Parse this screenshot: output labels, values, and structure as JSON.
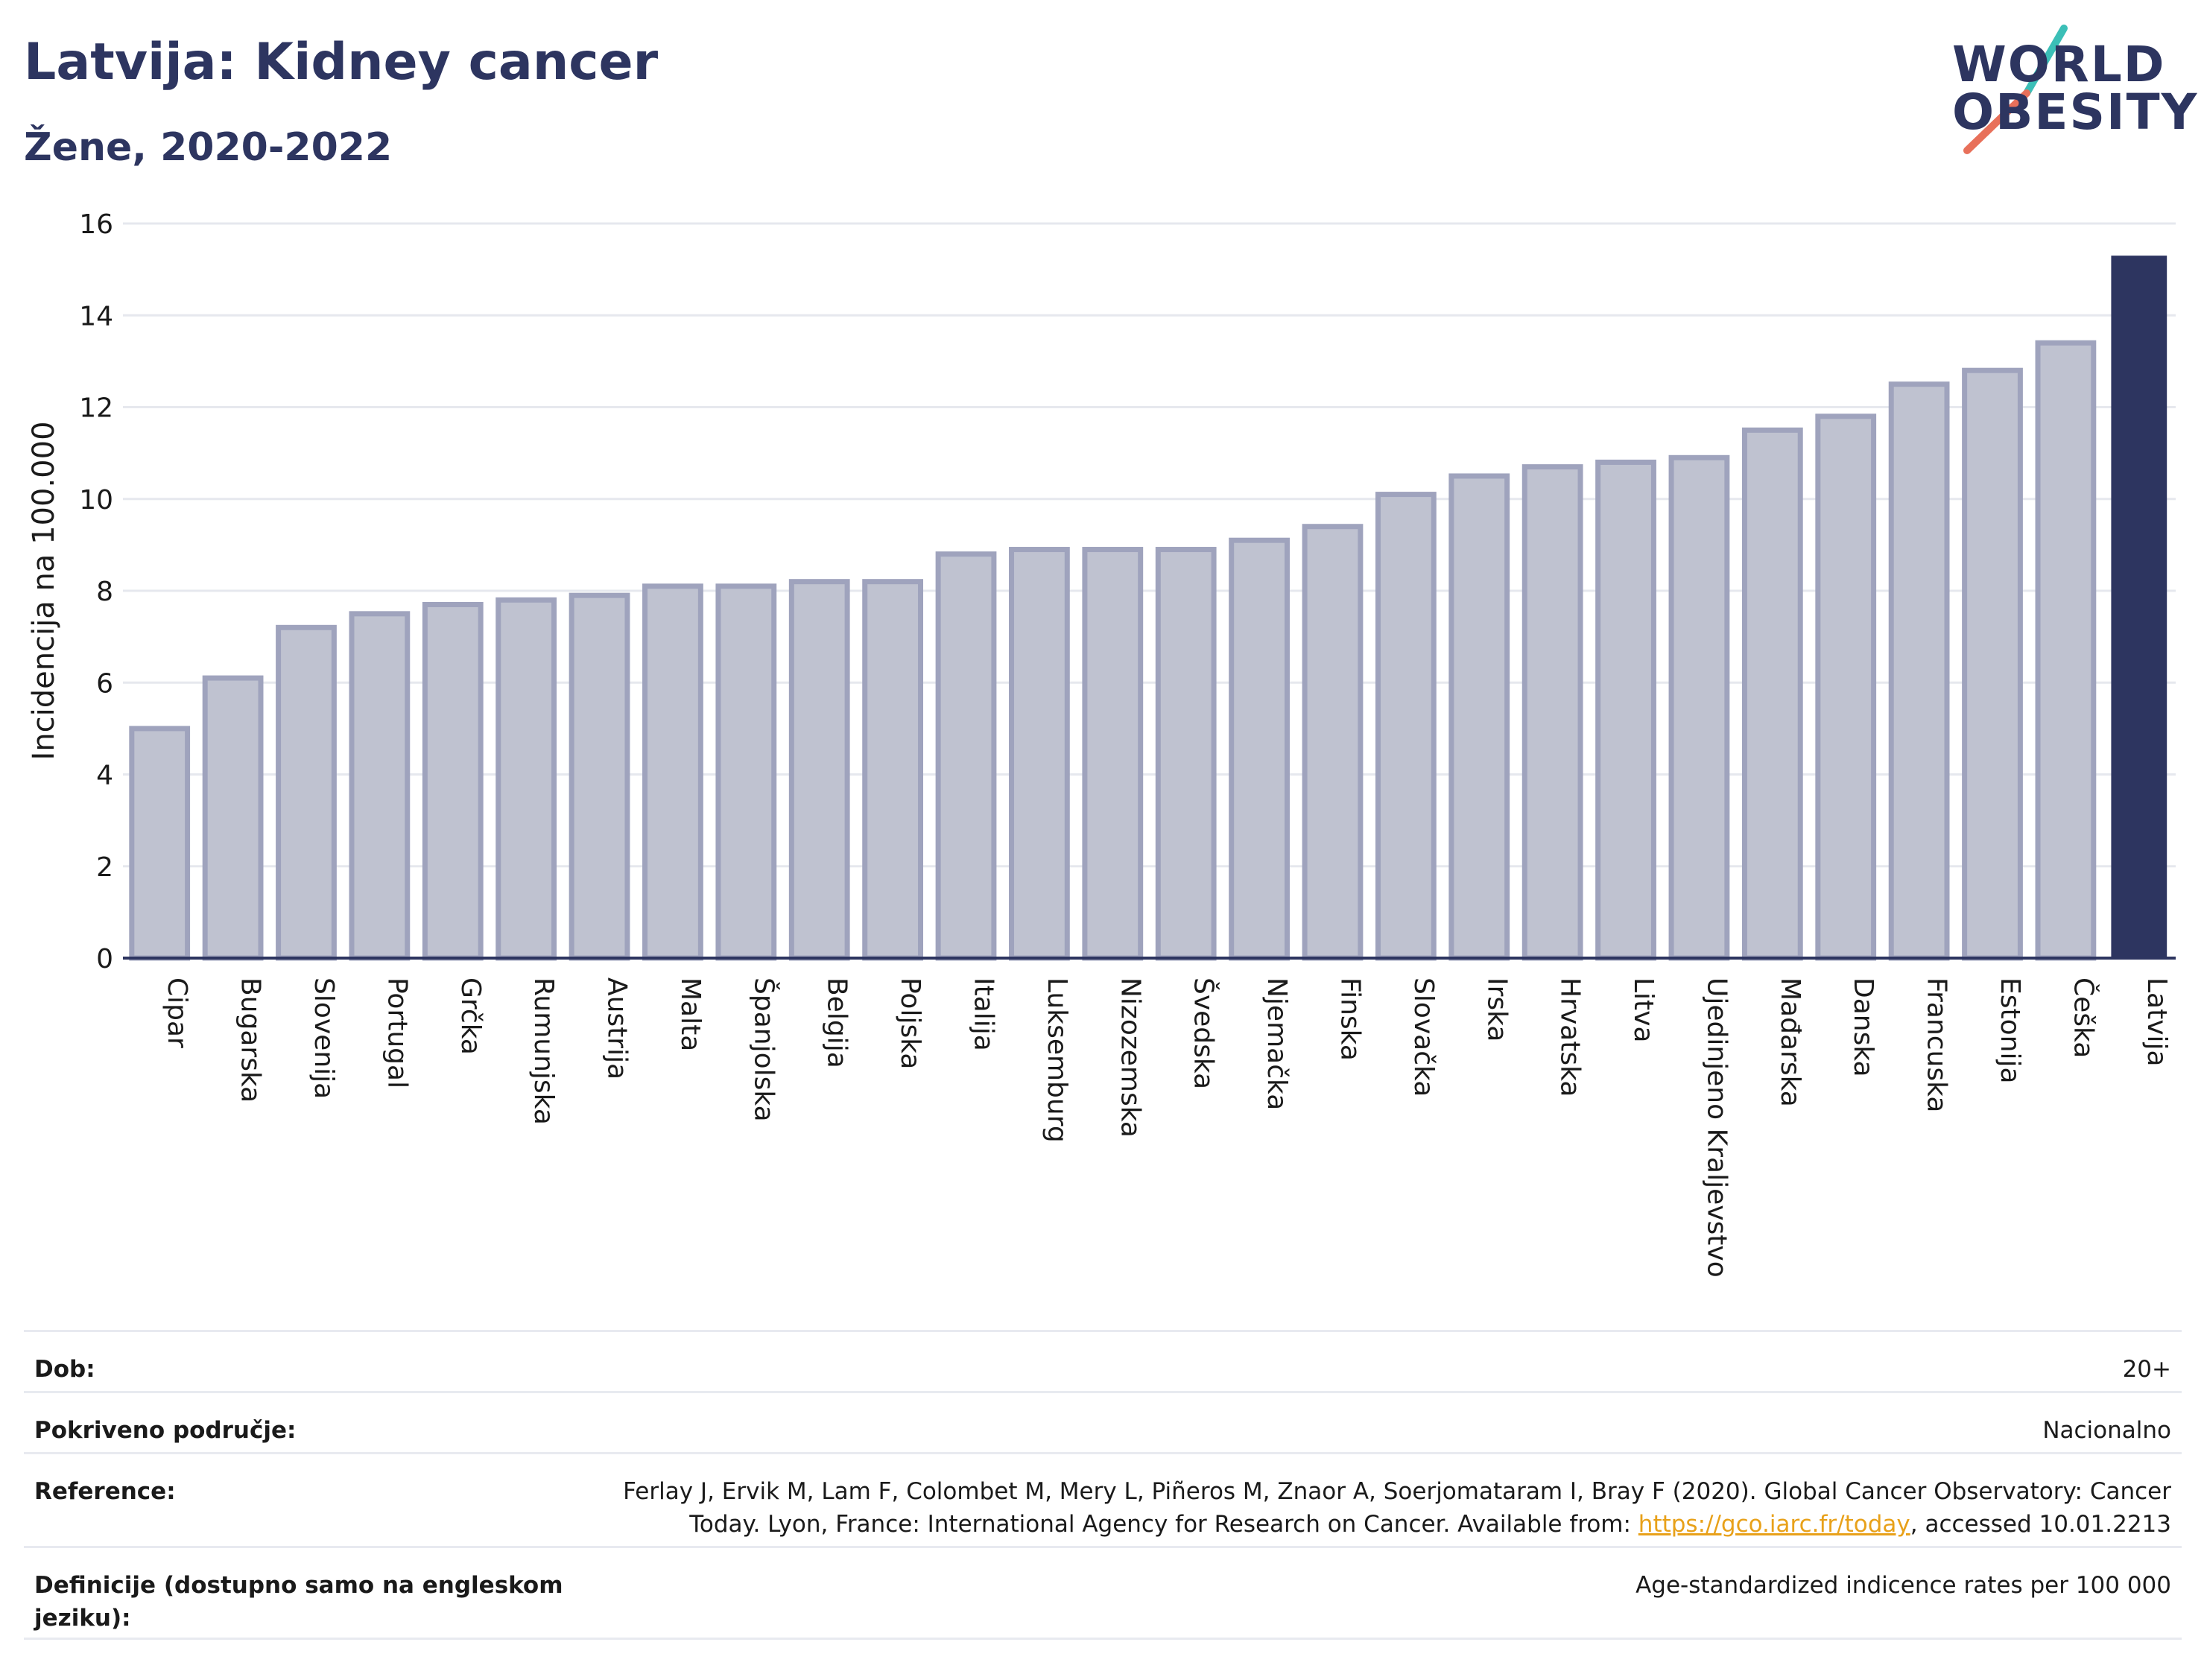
{
  "header": {
    "title": "Latvija: Kidney cancer",
    "subtitle": "Žene, 2020-2022"
  },
  "logo": {
    "line1": "WORLD",
    "line2": "OBESITY",
    "text_color": "#2d3560",
    "slash_colors": [
      "#3bbfb7",
      "#e8705a"
    ]
  },
  "chart_data": {
    "type": "bar",
    "ylabel": "Incidencija na 100.000",
    "ylim": [
      0,
      16
    ],
    "yticks": [
      0,
      2,
      4,
      6,
      8,
      10,
      12,
      14,
      16
    ],
    "grid": true,
    "highlight": "Latvija",
    "colors": {
      "bar": "#bfc2d0",
      "bar_edge": "#9fa3bd",
      "highlight": "#2d3560"
    },
    "categories": [
      "Cipar",
      "Bugarska",
      "Slovenija",
      "Portugal",
      "Grčka",
      "Rumunjska",
      "Austrija",
      "Malta",
      "Španjolska",
      "Belgija",
      "Poljska",
      "Italija",
      "Luksemburg",
      "Nizozemska",
      "Švedska",
      "Njemačka",
      "Finska",
      "Slovačka",
      "Irska",
      "Hrvatska",
      "Litva",
      "Ujedinjeno Kraljevstvo",
      "Mađarska",
      "Danska",
      "Francuska",
      "Estonija",
      "Češka",
      "Latvija"
    ],
    "values": [
      5.0,
      6.1,
      7.2,
      7.5,
      7.7,
      7.8,
      7.9,
      8.1,
      8.1,
      8.2,
      8.2,
      8.8,
      8.9,
      8.9,
      8.9,
      9.1,
      9.4,
      10.1,
      10.5,
      10.7,
      10.8,
      10.9,
      11.5,
      11.8,
      12.5,
      12.8,
      13.4,
      15.3
    ]
  },
  "info": {
    "rows": [
      {
        "label": "Dob:",
        "value": "20+"
      },
      {
        "label": "Pokriveno područje:",
        "value": "Nacionalno"
      },
      {
        "label": "Reference:",
        "value_before": "Ferlay J, Ervik M, Lam F, Colombet M, Mery L, Piñeros M, Znaor A, Soerjomataram I, Bray F (2020). Global Cancer Observatory: Cancer Today. Lyon, France: International Agency for Research on Cancer. Available from: ",
        "link": "https://gco.iarc.fr/today",
        "value_after": ", accessed 10.01.2213"
      },
      {
        "label": "Definicije (dostupno samo na engleskom jeziku):",
        "value": "Age-standardized indicence rates per 100 000"
      }
    ]
  }
}
